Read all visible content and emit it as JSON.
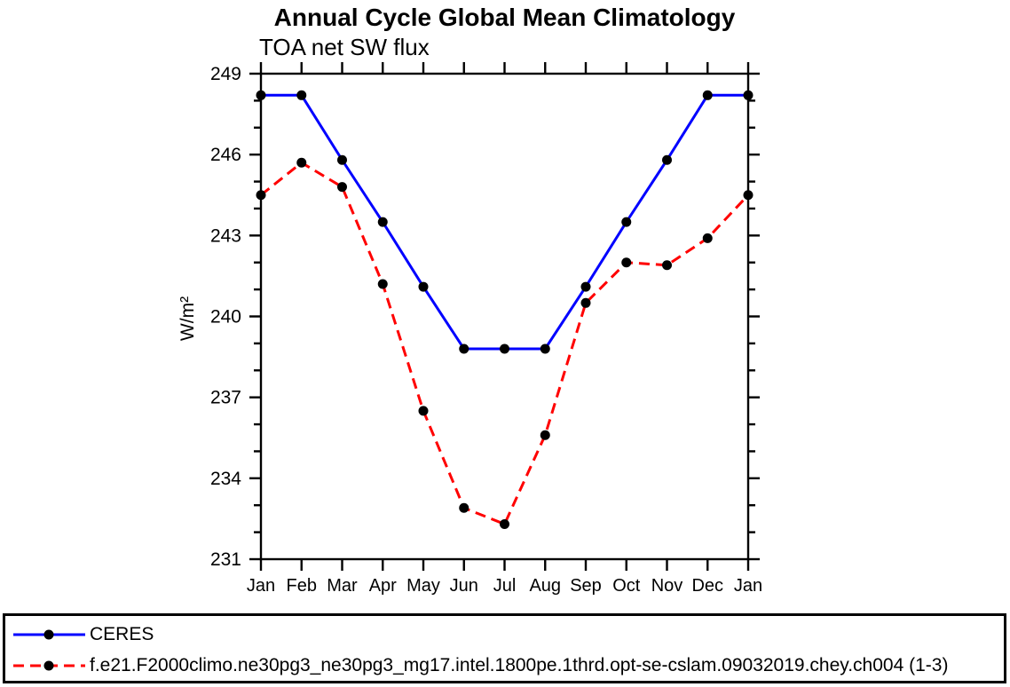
{
  "chart_data": {
    "type": "line",
    "title": "Annual Cycle Global Mean Climatology",
    "subtitle": "TOA net SW flux",
    "ylabel": "W/m²",
    "xlabel": "",
    "categories": [
      "Jan",
      "Feb",
      "Mar",
      "Apr",
      "May",
      "Jun",
      "Jul",
      "Aug",
      "Sep",
      "Oct",
      "Nov",
      "Dec",
      "Jan"
    ],
    "ylim": [
      231,
      249
    ],
    "y_major_ticks": [
      249,
      246,
      243,
      240,
      237,
      234,
      231
    ],
    "y_minor_ticks": [
      248,
      247,
      245,
      244,
      242,
      241,
      239,
      238,
      236,
      235,
      233,
      232
    ],
    "grid": false,
    "legend_position": "bottom-box-full-width",
    "axis_color": "#000000",
    "marker_shape": "filled-circle",
    "series": [
      {
        "name": "CERES",
        "line_color": "#0000ff",
        "line_style": "solid",
        "marker_color": "#000000",
        "values": [
          248.2,
          248.2,
          245.8,
          243.5,
          241.1,
          238.8,
          238.8,
          238.8,
          241.1,
          243.5,
          245.8,
          248.2,
          248.2
        ]
      },
      {
        "name": "f.e21.F2000climo.ne30pg3_ne30pg3_mg17.intel.1800pe.1thrd.opt-se-cslam.09032019.chey.ch004 (1-3)",
        "line_color": "#ff0000",
        "line_style": "dashed",
        "marker_color": "#000000",
        "values": [
          244.5,
          245.7,
          244.8,
          241.2,
          236.5,
          232.9,
          232.3,
          235.6,
          240.5,
          242.0,
          241.9,
          242.9,
          244.5
        ]
      }
    ]
  }
}
